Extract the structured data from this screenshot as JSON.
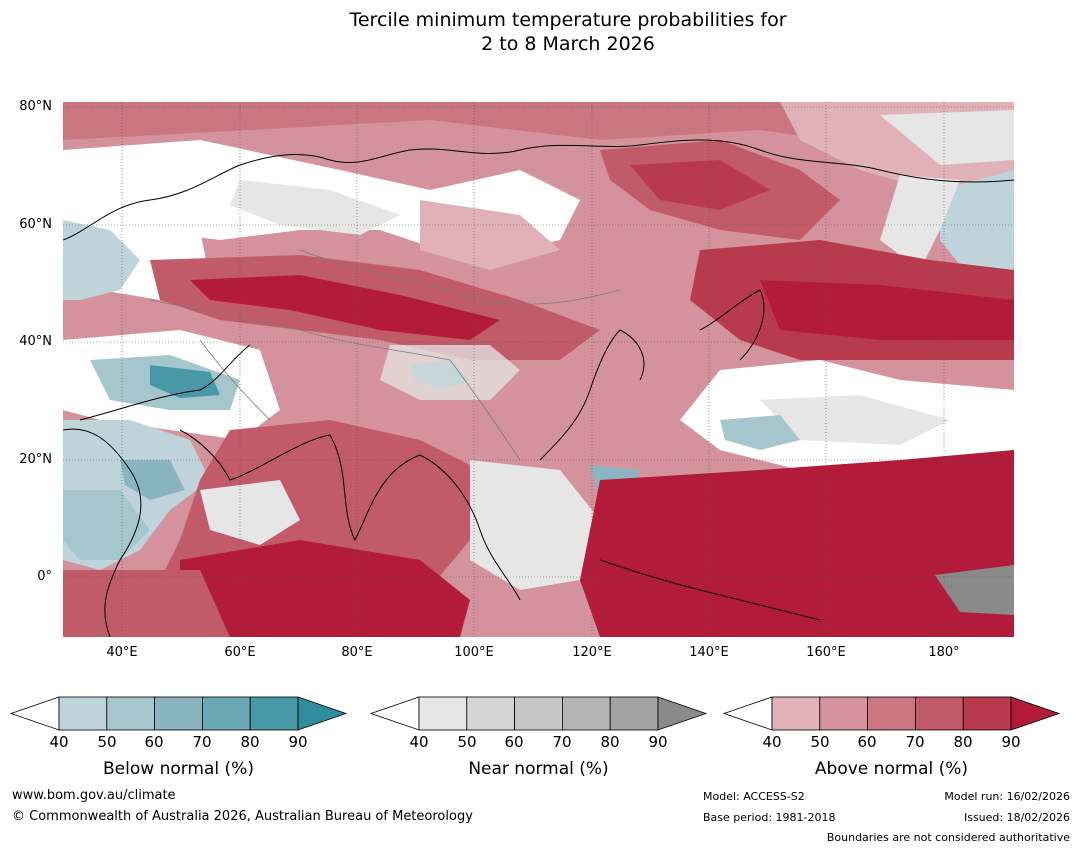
{
  "title": {
    "line1": "Tercile minimum temperature probabilities for",
    "line2": "2 to 8 March 2026"
  },
  "axes": {
    "lat_labels": [
      "80°N",
      "60°N",
      "40°N",
      "20°N",
      "0°"
    ],
    "lon_labels": [
      "40°E",
      "60°E",
      "80°E",
      "100°E",
      "120°E",
      "140°E",
      "160°E",
      "180°"
    ]
  },
  "colorbars": [
    {
      "name": "below",
      "title": "Below normal (%)",
      "ticks": [
        "40",
        "50",
        "60",
        "70",
        "80",
        "90"
      ],
      "colors": [
        "#bfd4da",
        "#a5c6cd",
        "#89b4c0",
        "#6aa8b5",
        "#4898a8",
        "#2f8c9c"
      ]
    },
    {
      "name": "near",
      "title": "Near normal (%)",
      "ticks": [
        "40",
        "50",
        "60",
        "70",
        "80",
        "90"
      ],
      "colors": [
        "#e6e6e6",
        "#d6d6d6",
        "#c6c6c6",
        "#b4b4b4",
        "#a3a3a3",
        "#8a8a8a"
      ]
    },
    {
      "name": "above",
      "title": "Above normal (%)",
      "ticks": [
        "40",
        "50",
        "60",
        "70",
        "80",
        "90"
      ],
      "colors": [
        "#e0b2b8",
        "#d4939c",
        "#c97681",
        "#c15b69",
        "#b83a4d",
        "#b21c3a"
      ]
    }
  ],
  "footer": {
    "website": "www.bom.gov.au/climate",
    "copyright": "© Commonwealth of Australia 2026, Australian Bureau of Meteorology",
    "model": "Model: ACCESS-S2",
    "base_period": "Base period: 1981-2018",
    "model_run": "Model run: 16/02/2026",
    "issued": "Issued: 18/02/2026",
    "disclaimer": "Boundaries are not considered authoritative"
  }
}
